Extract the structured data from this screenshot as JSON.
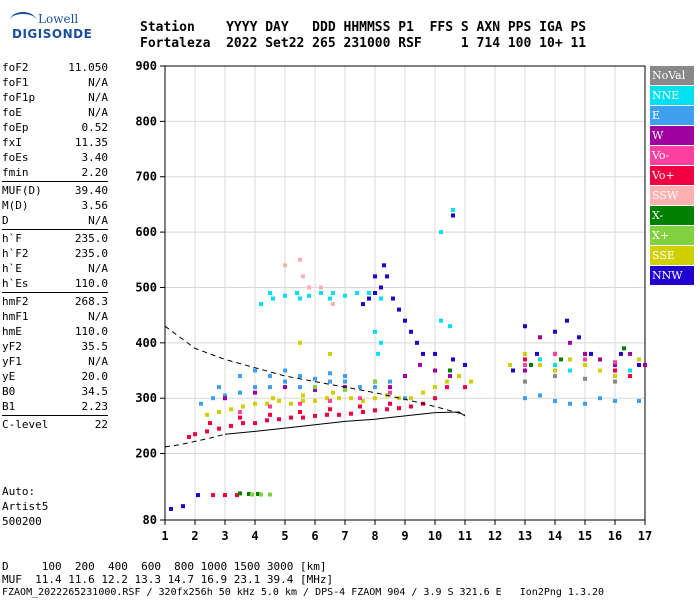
{
  "logo": {
    "top": "Lowell",
    "bottom": "DIGISONDE"
  },
  "header": {
    "line1": "Station    YYYY DAY   DDD HHMMSS P1  FFS S AXN PPS IGA PS",
    "line2": "Fortaleza  2022 Set22 265 231000 RSF     1 714 100 10+ 11"
  },
  "params": [
    {
      "group": [
        {
          "name": "foF2",
          "value": "11.050"
        },
        {
          "name": "foF1",
          "value": "N/A"
        },
        {
          "name": "foF1p",
          "value": "N/A"
        },
        {
          "name": "foE",
          "value": "N/A"
        },
        {
          "name": "foEp",
          "value": "0.52"
        },
        {
          "name": "fxI",
          "value": "11.35"
        },
        {
          "name": "foEs",
          "value": "3.40"
        },
        {
          "name": "fmin",
          "value": "2.20"
        }
      ]
    },
    {
      "group": [
        {
          "name": "MUF(D)",
          "value": "39.40"
        },
        {
          "name": "M(D)",
          "value": "3.56"
        },
        {
          "name": "D",
          "value": "N/A"
        }
      ]
    },
    {
      "group": [
        {
          "name": "h`F",
          "value": "235.0"
        },
        {
          "name": "h`F2",
          "value": "235.0"
        },
        {
          "name": "h`E",
          "value": "N/A"
        },
        {
          "name": "h`Es",
          "value": "110.0"
        }
      ]
    },
    {
      "group": [
        {
          "name": "hmF2",
          "value": "268.3"
        },
        {
          "name": "hmF1",
          "value": "N/A"
        },
        {
          "name": "hmE",
          "value": "110.0"
        },
        {
          "name": "yF2",
          "value": "35.5"
        },
        {
          "name": "yF1",
          "value": "N/A"
        },
        {
          "name": "yE",
          "value": "20.0"
        },
        {
          "name": "B0",
          "value": "34.5"
        },
        {
          "name": "B1",
          "value": "2.23"
        }
      ]
    },
    {
      "group": [
        {
          "name": "C-level",
          "value": "22"
        }
      ]
    }
  ],
  "notes": {
    "l1": "Auto:",
    "l2": "Artist5",
    "l3": "500200"
  },
  "legend": [
    {
      "label": "NoVal",
      "color": "#888888"
    },
    {
      "label": "NNE",
      "color": "#00e0f0"
    },
    {
      "label": "E",
      "color": "#40a0f0"
    },
    {
      "label": "W",
      "color": "#a000a0"
    },
    {
      "label": "Vo-",
      "color": "#ff40a0"
    },
    {
      "label": "Vo+",
      "color": "#f00040"
    },
    {
      "label": "SSW",
      "color": "#ffb0b0"
    },
    {
      "label": "X-",
      "color": "#008000"
    },
    {
      "label": "X+",
      "color": "#80d040"
    },
    {
      "label": "SSE",
      "color": "#d0d000"
    },
    {
      "label": "NNW",
      "color": "#2000d0"
    }
  ],
  "footer": {
    "line1": "D     100  200  400  600  800 1000 1500 3000 [km]",
    "line2": "MUF  11.4 11.6 12.2 13.3 14.7 16.9 23.1 39.4 [MHz]",
    "line3": "FZAOM_2022265231000.RSF / 320fx256h 50 kHz 5.0 km / DPS-4 FZAOM 904 / 3.9 S 321.6 E   Ion2Png 1.3.20"
  },
  "chart_data": {
    "type": "scatter",
    "xlim": [
      1,
      17
    ],
    "ylim": [
      80,
      900
    ],
    "xticks": [
      1,
      2,
      3,
      4,
      5,
      6,
      7,
      8,
      9,
      10,
      11,
      12,
      13,
      14,
      15,
      16,
      17
    ],
    "yticks": [
      80,
      200,
      300,
      400,
      500,
      600,
      700,
      800,
      900
    ],
    "grid": true,
    "series": [
      {
        "color": "#40a0f0",
        "points": [
          [
            2.2,
            290
          ],
          [
            2.6,
            300
          ],
          [
            3,
            305
          ],
          [
            3.5,
            310
          ],
          [
            4,
            320
          ],
          [
            4.5,
            320
          ],
          [
            5,
            330
          ],
          [
            5.5,
            320
          ],
          [
            6,
            315
          ],
          [
            6.5,
            330
          ],
          [
            7,
            330
          ],
          [
            7.5,
            320
          ],
          [
            8,
            320
          ],
          [
            8.5,
            330
          ],
          [
            9,
            300
          ],
          [
            2.8,
            320
          ],
          [
            3.5,
            340
          ],
          [
            4,
            350
          ],
          [
            4.5,
            340
          ],
          [
            5,
            350
          ],
          [
            5.5,
            340
          ],
          [
            6,
            335
          ],
          [
            6.5,
            345
          ],
          [
            7,
            340
          ],
          [
            13,
            300
          ],
          [
            14,
            295
          ],
          [
            15,
            290
          ],
          [
            16,
            295
          ],
          [
            16.8,
            295
          ],
          [
            13.5,
            305
          ],
          [
            14.5,
            290
          ],
          [
            15.5,
            300
          ]
        ]
      },
      {
        "color": "#00e0f0",
        "points": [
          [
            4.2,
            470
          ],
          [
            4.6,
            480
          ],
          [
            5,
            485
          ],
          [
            5.4,
            490
          ],
          [
            5.8,
            485
          ],
          [
            6.2,
            490
          ],
          [
            6.6,
            490
          ],
          [
            7,
            485
          ],
          [
            7.4,
            490
          ],
          [
            7.8,
            490
          ],
          [
            8.2,
            480
          ],
          [
            4.5,
            490
          ],
          [
            5.5,
            480
          ],
          [
            6.5,
            480
          ],
          [
            8,
            420
          ],
          [
            8.2,
            400
          ],
          [
            8.1,
            380
          ],
          [
            10.2,
            440
          ],
          [
            10.5,
            430
          ],
          [
            10.6,
            640
          ],
          [
            10.2,
            600
          ],
          [
            13,
            380
          ],
          [
            13.5,
            370
          ],
          [
            14,
            360
          ],
          [
            14.5,
            350
          ],
          [
            15,
            370
          ],
          [
            16,
            360
          ],
          [
            16.5,
            350
          ]
        ]
      },
      {
        "color": "#f00040",
        "points": [
          [
            1.8,
            230
          ],
          [
            2,
            235
          ],
          [
            2.4,
            240
          ],
          [
            2.8,
            245
          ],
          [
            3.2,
            250
          ],
          [
            3.6,
            255
          ],
          [
            4,
            255
          ],
          [
            4.4,
            260
          ],
          [
            4.8,
            262
          ],
          [
            5.2,
            265
          ],
          [
            5.6,
            265
          ],
          [
            6,
            268
          ],
          [
            6.4,
            270
          ],
          [
            6.8,
            270
          ],
          [
            7.2,
            272
          ],
          [
            7.6,
            275
          ],
          [
            8,
            278
          ],
          [
            8.4,
            280
          ],
          [
            8.8,
            282
          ],
          [
            9.2,
            285
          ],
          [
            9.6,
            290
          ],
          [
            10,
            300
          ],
          [
            10.4,
            320
          ],
          [
            10.8,
            340
          ],
          [
            11,
            320
          ],
          [
            2.5,
            255
          ],
          [
            3.5,
            265
          ],
          [
            4.5,
            270
          ],
          [
            5.5,
            275
          ],
          [
            6.5,
            280
          ],
          [
            7.5,
            285
          ],
          [
            8.5,
            290
          ],
          [
            2.6,
            125
          ],
          [
            3,
            125
          ],
          [
            3.4,
            125
          ],
          [
            13,
            370
          ],
          [
            14,
            350
          ],
          [
            15,
            360
          ],
          [
            16,
            350
          ],
          [
            16.5,
            340
          ]
        ]
      },
      {
        "color": "#d0d000",
        "points": [
          [
            2.4,
            270
          ],
          [
            2.8,
            275
          ],
          [
            3.2,
            280
          ],
          [
            3.6,
            285
          ],
          [
            4,
            290
          ],
          [
            4.4,
            290
          ],
          [
            4.8,
            295
          ],
          [
            5.2,
            290
          ],
          [
            5.6,
            295
          ],
          [
            6,
            295
          ],
          [
            6.4,
            300
          ],
          [
            6.8,
            300
          ],
          [
            7.2,
            300
          ],
          [
            7.6,
            295
          ],
          [
            8,
            300
          ],
          [
            8.4,
            305
          ],
          [
            8.8,
            300
          ],
          [
            9.2,
            300
          ],
          [
            9.6,
            310
          ],
          [
            10,
            320
          ],
          [
            10.4,
            330
          ],
          [
            10.8,
            340
          ],
          [
            11.2,
            330
          ],
          [
            12.5,
            360
          ],
          [
            13,
            380
          ],
          [
            13.5,
            360
          ],
          [
            14,
            350
          ],
          [
            14.5,
            370
          ],
          [
            15,
            360
          ],
          [
            15.5,
            350
          ],
          [
            16,
            340
          ],
          [
            16.8,
            370
          ],
          [
            4.6,
            300
          ],
          [
            5.6,
            305
          ],
          [
            6.6,
            310
          ],
          [
            5.5,
            400
          ],
          [
            6.5,
            380
          ]
        ]
      },
      {
        "color": "#a000a0",
        "points": [
          [
            3,
            300
          ],
          [
            4,
            310
          ],
          [
            5,
            320
          ],
          [
            6,
            315
          ],
          [
            7,
            320
          ],
          [
            8,
            330
          ],
          [
            8.5,
            320
          ],
          [
            9,
            340
          ],
          [
            9.5,
            360
          ],
          [
            10,
            350
          ],
          [
            10.5,
            340
          ],
          [
            11,
            360
          ],
          [
            13,
            350
          ],
          [
            13.5,
            410
          ],
          [
            14,
            380
          ],
          [
            14.5,
            400
          ],
          [
            15,
            380
          ],
          [
            15.5,
            370
          ],
          [
            16,
            360
          ],
          [
            16.5,
            380
          ],
          [
            17,
            360
          ]
        ]
      },
      {
        "color": "#2000d0",
        "points": [
          [
            7.6,
            470
          ],
          [
            7.8,
            480
          ],
          [
            8,
            490
          ],
          [
            8.2,
            500
          ],
          [
            8.4,
            520
          ],
          [
            8.6,
            480
          ],
          [
            8.8,
            460
          ],
          [
            9,
            440
          ],
          [
            9.2,
            420
          ],
          [
            9.4,
            400
          ],
          [
            9.6,
            380
          ],
          [
            8,
            520
          ],
          [
            8.3,
            540
          ],
          [
            10.6,
            630
          ],
          [
            10,
            380
          ],
          [
            10.6,
            370
          ],
          [
            11,
            360
          ],
          [
            12.6,
            350
          ],
          [
            13,
            430
          ],
          [
            13.4,
            380
          ],
          [
            14,
            420
          ],
          [
            14.4,
            440
          ],
          [
            14.8,
            410
          ],
          [
            15.2,
            380
          ],
          [
            16.2,
            380
          ],
          [
            16.8,
            360
          ],
          [
            2.1,
            125
          ],
          [
            1.2,
            100
          ],
          [
            1.6,
            105
          ]
        ]
      },
      {
        "color": "#ff40a0",
        "points": [
          [
            3.5,
            275
          ],
          [
            4.5,
            285
          ],
          [
            5.5,
            290
          ],
          [
            6.5,
            295
          ],
          [
            7.5,
            300
          ],
          [
            8.5,
            310
          ],
          [
            13,
            360
          ],
          [
            14,
            380
          ],
          [
            15,
            370
          ],
          [
            16,
            365
          ]
        ]
      },
      {
        "color": "#008000",
        "points": [
          [
            3.5,
            128
          ],
          [
            3.8,
            127
          ],
          [
            4.1,
            127
          ],
          [
            10.5,
            350
          ],
          [
            13.2,
            360
          ],
          [
            14.2,
            370
          ],
          [
            16.3,
            390
          ]
        ]
      },
      {
        "color": "#80d040",
        "points": [
          [
            3.9,
            126
          ],
          [
            4.2,
            126
          ],
          [
            4.5,
            126
          ],
          [
            6,
            320
          ],
          [
            7,
            315
          ],
          [
            8,
            330
          ]
        ]
      },
      {
        "color": "#ffb0b0",
        "points": [
          [
            5.5,
            550
          ],
          [
            5.6,
            520
          ],
          [
            5.8,
            500
          ],
          [
            6.2,
            500
          ],
          [
            6.6,
            470
          ],
          [
            5,
            540
          ]
        ]
      },
      {
        "color": "#888888",
        "points": [
          [
            13,
            330
          ],
          [
            14,
            340
          ],
          [
            15,
            335
          ],
          [
            16,
            330
          ]
        ]
      }
    ],
    "curves": [
      {
        "style": "dashed",
        "points": [
          [
            1,
            430
          ],
          [
            2,
            390
          ],
          [
            3,
            370
          ],
          [
            4,
            355
          ],
          [
            5,
            340
          ],
          [
            6,
            330
          ],
          [
            7,
            320
          ],
          [
            8,
            310
          ],
          [
            9,
            298
          ],
          [
            10,
            285
          ],
          [
            11,
            270
          ]
        ]
      },
      {
        "style": "solid",
        "points": [
          [
            3,
            235
          ],
          [
            4,
            240
          ],
          [
            5,
            246
          ],
          [
            6,
            252
          ],
          [
            7,
            258
          ],
          [
            8,
            262
          ],
          [
            9,
            268
          ],
          [
            10,
            274
          ],
          [
            10.8,
            275
          ],
          [
            11,
            268
          ]
        ]
      },
      {
        "style": "dashed",
        "points": [
          [
            1,
            212
          ],
          [
            1.5,
            216
          ],
          [
            2,
            222
          ],
          [
            2.5,
            228
          ],
          [
            3,
            235
          ]
        ]
      }
    ]
  }
}
